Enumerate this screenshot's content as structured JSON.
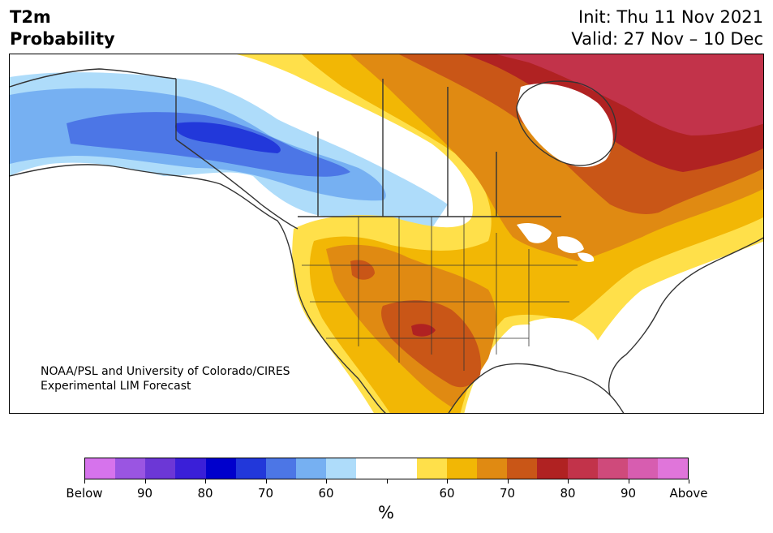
{
  "title": {
    "line1": "T2m",
    "line2": "Probability"
  },
  "info": {
    "init": "Init: Thu 11 Nov 2021",
    "valid": "Valid: 27 Nov – 10 Dec"
  },
  "credit": {
    "line1": "NOAA/PSL and University of Colorado/CIRES",
    "line2": "Experimental LIM Forecast"
  },
  "colorbar": {
    "colors": [
      "#d673ec",
      "#9a55e2",
      "#6c37d6",
      "#3a1fd8",
      "#0000cc",
      "#2238da",
      "#4c76e6",
      "#76b0f2",
      "#aedcfa",
      "#ffffff",
      "#ffffff",
      "#ffe04a",
      "#f2b705",
      "#e08a12",
      "#c95617",
      "#b02222",
      "#c2334a",
      "#cf4a7b",
      "#d75db0",
      "#e075da"
    ],
    "labels": [
      "Below",
      "90",
      "80",
      "70",
      "60",
      "",
      "60",
      "70",
      "80",
      "90",
      "Above"
    ],
    "unit": "%"
  },
  "map": {
    "region": "North America",
    "palette": {
      "land_white": "#ffffff",
      "light_blue": "#aedcfa",
      "sky_blue": "#76b0f2",
      "mid_blue": "#4c76e6",
      "deep_blue": "#2238da",
      "yellow": "#ffe04a",
      "gold": "#f2b705",
      "orange": "#e08a12",
      "burnt_orange": "#c95617",
      "red": "#b02222",
      "crimson": "#c2334a",
      "coast": "#333333"
    }
  }
}
